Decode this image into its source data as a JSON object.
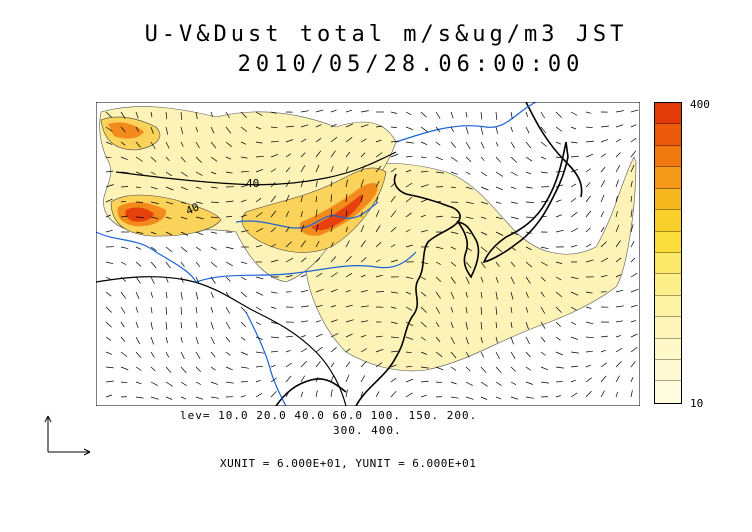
{
  "title": {
    "line1": "U-V&Dust total m/s&ug/m3 JST",
    "line2": "2010/05/28.06:00:00"
  },
  "legend": {
    "levels_line1": "lev= 10.0 20.0 40.0 60.0 100. 150. 200.",
    "levels_line2": "300. 400.",
    "units": "XUNIT = 6.000E+01, YUNIT = 6.000E+01"
  },
  "colorbar": {
    "max_label": "400",
    "min_label": "10",
    "colors": [
      "#e33a0a",
      "#ec5a0c",
      "#f07a10",
      "#f49a18",
      "#f7b81f",
      "#f9cf2a",
      "#fbde3c",
      "#fce96a",
      "#fdef8a",
      "#fef3a4",
      "#fef6b8",
      "#fff8c8",
      "#fff9d4",
      "#fffbde"
    ]
  },
  "map": {
    "contour_labels": [
      "40",
      "40"
    ],
    "colors": {
      "coast": "#000000",
      "rivers": "#1a63d6",
      "dust_light": "#fdf3b7",
      "dust_mid": "#fbd35a",
      "dust_high": "#f28a1c",
      "dust_max": "#e6400d"
    }
  }
}
